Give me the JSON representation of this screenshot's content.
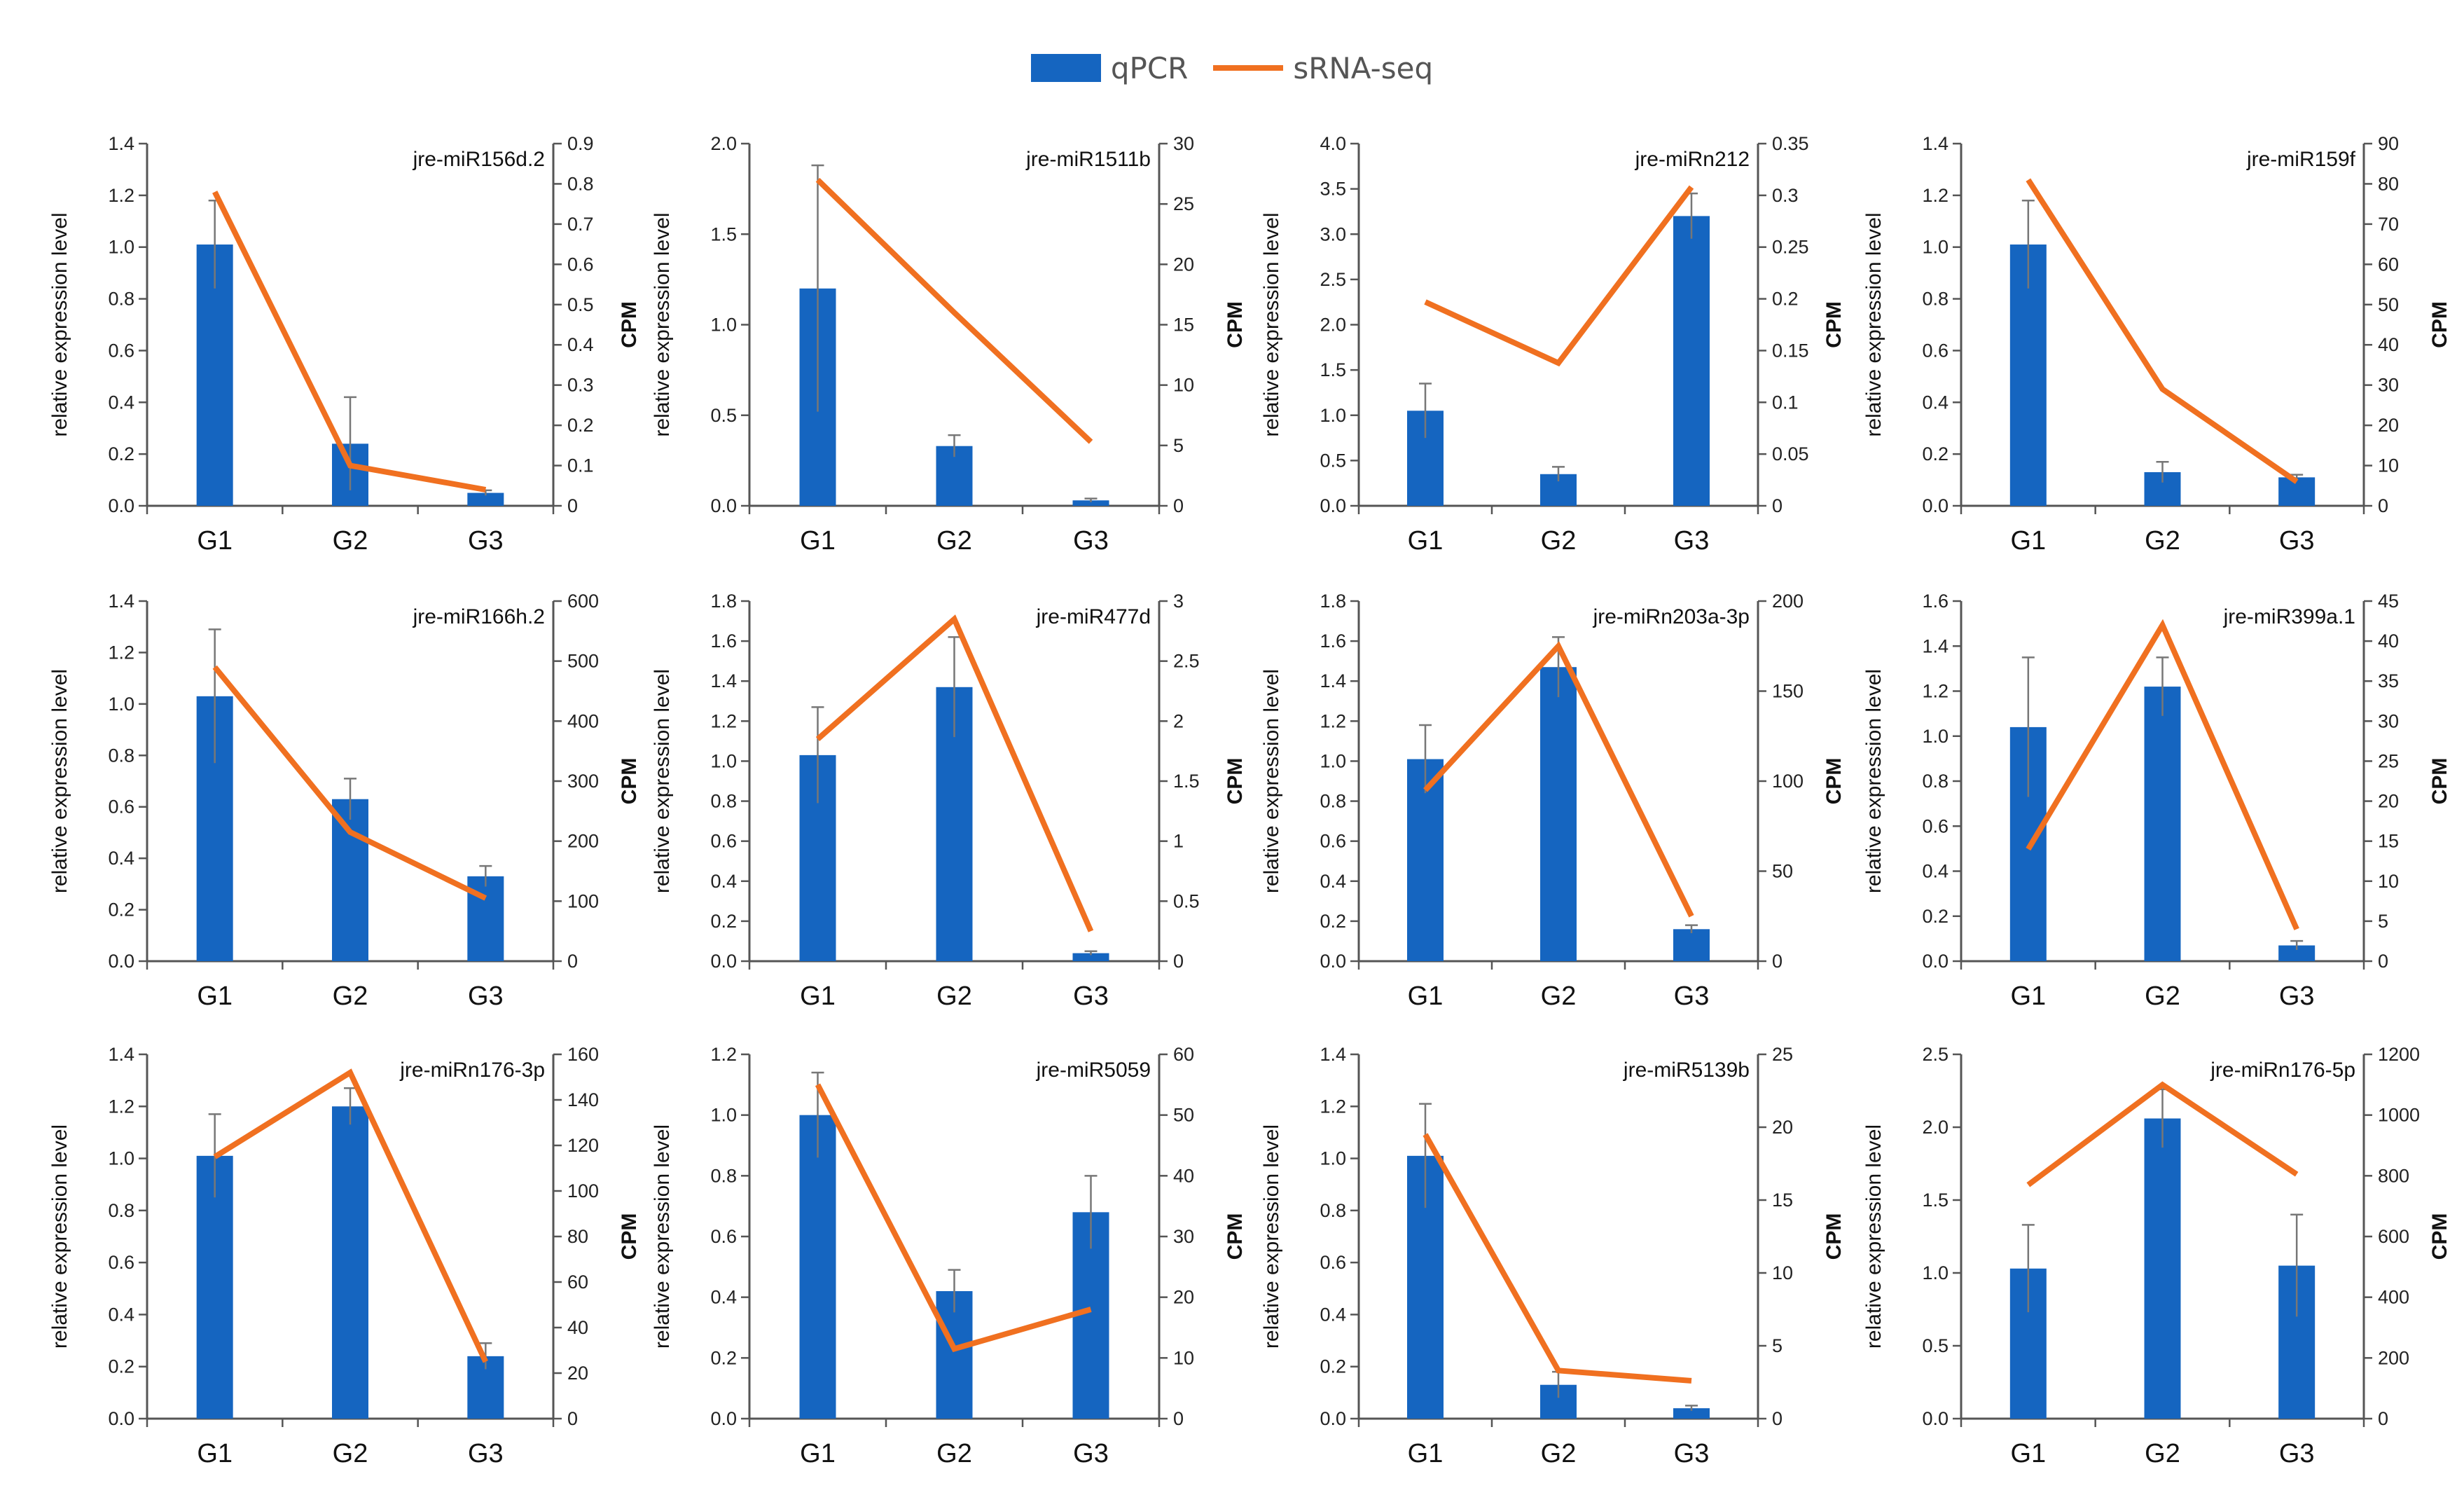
{
  "legend": {
    "bar_label": "qPCR",
    "line_label": "sRNA-seq",
    "bar_color": "#1565C0",
    "line_color": "#F07020"
  },
  "chart_data": [
    {
      "type": "bar",
      "title": "jre-miR156d.2",
      "categories": [
        "G1",
        "G2",
        "G3"
      ],
      "ylabel": "relative expression level",
      "y2label": "CPM",
      "ylim": [
        0,
        1.4
      ],
      "yticks": [
        "0.0",
        "0.2",
        "0.4",
        "0.6",
        "0.8",
        "1.0",
        "1.2",
        "1.4"
      ],
      "y2lim": [
        0,
        0.9
      ],
      "y2ticks": [
        "0",
        "0.1",
        "0.2",
        "0.3",
        "0.4",
        "0.5",
        "0.6",
        "0.7",
        "0.8",
        "0.9"
      ],
      "series": [
        {
          "name": "qPCR",
          "axis": "left",
          "values": [
            1.01,
            0.24,
            0.05
          ],
          "errors": [
            0.17,
            0.18,
            0.01
          ]
        },
        {
          "name": "sRNA-seq",
          "axis": "right",
          "values": [
            0.78,
            0.1,
            0.04
          ]
        }
      ]
    },
    {
      "type": "bar",
      "title": "jre-miR1511b",
      "categories": [
        "G1",
        "G2",
        "G3"
      ],
      "ylabel": "relative expression level",
      "y2label": "CPM",
      "ylim": [
        0,
        2.0
      ],
      "yticks": [
        "0.0",
        "0.5",
        "1.0",
        "1.5",
        "2.0"
      ],
      "y2lim": [
        0,
        30
      ],
      "y2ticks": [
        "0",
        "5",
        "10",
        "15",
        "20",
        "25",
        "30"
      ],
      "series": [
        {
          "name": "qPCR",
          "axis": "left",
          "values": [
            1.2,
            0.33,
            0.03
          ],
          "errors": [
            0.68,
            0.06,
            0.01
          ]
        },
        {
          "name": "sRNA-seq",
          "axis": "right",
          "values": [
            27,
            16,
            5.3
          ]
        }
      ]
    },
    {
      "type": "bar",
      "title": "jre-miRn212",
      "categories": [
        "G1",
        "G2",
        "G3"
      ],
      "ylabel": "relative expression level",
      "y2label": "CPM",
      "ylim": [
        0,
        4.0
      ],
      "yticks": [
        "0.0",
        "0.5",
        "1.0",
        "1.5",
        "2.0",
        "2.5",
        "3.0",
        "3.5",
        "4.0"
      ],
      "y2lim": [
        0,
        0.35
      ],
      "y2ticks": [
        "0",
        "0.05",
        "0.1",
        "0.15",
        "0.2",
        "0.25",
        "0.3",
        "0.35"
      ],
      "series": [
        {
          "name": "qPCR",
          "axis": "left",
          "values": [
            1.05,
            0.35,
            3.2
          ],
          "errors": [
            0.3,
            0.08,
            0.25
          ]
        },
        {
          "name": "sRNA-seq",
          "axis": "right",
          "values": [
            0.197,
            0.138,
            0.308
          ]
        }
      ]
    },
    {
      "type": "bar",
      "title": "jre-miR159f",
      "categories": [
        "G1",
        "G2",
        "G3"
      ],
      "ylabel": "relative expression level",
      "y2label": "CPM",
      "ylim": [
        0,
        1.4
      ],
      "yticks": [
        "0.0",
        "0.2",
        "0.4",
        "0.6",
        "0.8",
        "1.0",
        "1.2",
        "1.4"
      ],
      "y2lim": [
        0,
        90
      ],
      "y2ticks": [
        "0",
        "10",
        "20",
        "30",
        "40",
        "50",
        "60",
        "70",
        "80",
        "90"
      ],
      "series": [
        {
          "name": "qPCR",
          "axis": "left",
          "values": [
            1.01,
            0.13,
            0.11
          ],
          "errors": [
            0.17,
            0.04,
            0.01
          ]
        },
        {
          "name": "sRNA-seq",
          "axis": "right",
          "values": [
            81,
            29,
            6
          ]
        }
      ]
    },
    {
      "type": "bar",
      "title": "jre-miR166h.2",
      "categories": [
        "G1",
        "G2",
        "G3"
      ],
      "ylabel": "relative expression level",
      "y2label": "CPM",
      "ylim": [
        0,
        1.4
      ],
      "yticks": [
        "0.0",
        "0.2",
        "0.4",
        "0.6",
        "0.8",
        "1.0",
        "1.2",
        "1.4"
      ],
      "y2lim": [
        0,
        600
      ],
      "y2ticks": [
        "0",
        "100",
        "200",
        "300",
        "400",
        "500",
        "600"
      ],
      "series": [
        {
          "name": "qPCR",
          "axis": "left",
          "values": [
            1.03,
            0.63,
            0.33
          ],
          "errors": [
            0.26,
            0.08,
            0.04
          ]
        },
        {
          "name": "sRNA-seq",
          "axis": "right",
          "values": [
            490,
            215,
            105
          ]
        }
      ]
    },
    {
      "type": "bar",
      "title": "jre-miR477d",
      "categories": [
        "G1",
        "G2",
        "G3"
      ],
      "ylabel": "relative expression level",
      "y2label": "CPM",
      "ylim": [
        0,
        1.8
      ],
      "yticks": [
        "0.0",
        "0.2",
        "0.4",
        "0.6",
        "0.8",
        "1.0",
        "1.2",
        "1.4",
        "1.6",
        "1.8"
      ],
      "y2lim": [
        0,
        3
      ],
      "y2ticks": [
        "0",
        "0.5",
        "1",
        "1.5",
        "2",
        "2.5",
        "3"
      ],
      "series": [
        {
          "name": "qPCR",
          "axis": "left",
          "values": [
            1.03,
            1.37,
            0.04
          ],
          "errors": [
            0.24,
            0.25,
            0.01
          ]
        },
        {
          "name": "sRNA-seq",
          "axis": "right",
          "values": [
            1.85,
            2.85,
            0.25
          ]
        }
      ]
    },
    {
      "type": "bar",
      "title": "jre-miRn203a-3p",
      "categories": [
        "G1",
        "G2",
        "G3"
      ],
      "ylabel": "relative expression level",
      "y2label": "CPM",
      "ylim": [
        0,
        1.8
      ],
      "yticks": [
        "0.0",
        "0.2",
        "0.4",
        "0.6",
        "0.8",
        "1.0",
        "1.2",
        "1.4",
        "1.6",
        "1.8"
      ],
      "y2lim": [
        0,
        200
      ],
      "y2ticks": [
        "0",
        "50",
        "100",
        "150",
        "200"
      ],
      "series": [
        {
          "name": "qPCR",
          "axis": "left",
          "values": [
            1.01,
            1.47,
            0.16
          ],
          "errors": [
            0.17,
            0.15,
            0.02
          ]
        },
        {
          "name": "sRNA-seq",
          "axis": "right",
          "values": [
            95,
            175,
            25
          ]
        }
      ]
    },
    {
      "type": "bar",
      "title": "jre-miR399a.1",
      "categories": [
        "G1",
        "G2",
        "G3"
      ],
      "ylabel": "relative expression level",
      "y2label": "CPM",
      "ylim": [
        0,
        1.6
      ],
      "yticks": [
        "0.0",
        "0.2",
        "0.4",
        "0.6",
        "0.8",
        "1.0",
        "1.2",
        "1.4",
        "1.6"
      ],
      "y2lim": [
        0,
        45
      ],
      "y2ticks": [
        "0",
        "5",
        "10",
        "15",
        "20",
        "25",
        "30",
        "35",
        "40",
        "45"
      ],
      "series": [
        {
          "name": "qPCR",
          "axis": "left",
          "values": [
            1.04,
            1.22,
            0.07
          ],
          "errors": [
            0.31,
            0.13,
            0.02
          ]
        },
        {
          "name": "sRNA-seq",
          "axis": "right",
          "values": [
            14,
            42,
            4
          ]
        }
      ]
    },
    {
      "type": "bar",
      "title": "jre-miRn176-3p",
      "categories": [
        "G1",
        "G2",
        "G3"
      ],
      "ylabel": "relative expression level",
      "y2label": "CPM",
      "ylim": [
        0,
        1.4
      ],
      "yticks": [
        "0.0",
        "0.2",
        "0.4",
        "0.6",
        "0.8",
        "1.0",
        "1.2",
        "1.4"
      ],
      "y2lim": [
        0,
        160
      ],
      "y2ticks": [
        "0",
        "20",
        "40",
        "60",
        "80",
        "100",
        "120",
        "140",
        "160"
      ],
      "series": [
        {
          "name": "qPCR",
          "axis": "left",
          "values": [
            1.01,
            1.2,
            0.24
          ],
          "errors": [
            0.16,
            0.07,
            0.05
          ]
        },
        {
          "name": "sRNA-seq",
          "axis": "right",
          "values": [
            115,
            152,
            25
          ]
        }
      ]
    },
    {
      "type": "bar",
      "title": "jre-miR5059",
      "categories": [
        "G1",
        "G2",
        "G3"
      ],
      "ylabel": "relative expression level",
      "y2label": "CPM",
      "ylim": [
        0,
        1.2
      ],
      "yticks": [
        "0.0",
        "0.2",
        "0.4",
        "0.6",
        "0.8",
        "1.0",
        "1.2"
      ],
      "y2lim": [
        0,
        60
      ],
      "y2ticks": [
        "0",
        "10",
        "20",
        "30",
        "40",
        "50",
        "60"
      ],
      "series": [
        {
          "name": "qPCR",
          "axis": "left",
          "values": [
            1.0,
            0.42,
            0.68
          ],
          "errors": [
            0.14,
            0.07,
            0.12
          ]
        },
        {
          "name": "sRNA-seq",
          "axis": "right",
          "values": [
            55,
            11.5,
            18
          ]
        }
      ]
    },
    {
      "type": "bar",
      "title": "jre-miR5139b",
      "categories": [
        "G1",
        "G2",
        "G3"
      ],
      "ylabel": "relative expression level",
      "y2label": "CPM",
      "ylim": [
        0,
        1.4
      ],
      "yticks": [
        "0.0",
        "0.2",
        "0.4",
        "0.6",
        "0.8",
        "1.0",
        "1.2",
        "1.4"
      ],
      "y2lim": [
        0,
        25
      ],
      "y2ticks": [
        "0",
        "5",
        "10",
        "15",
        "20",
        "25"
      ],
      "series": [
        {
          "name": "qPCR",
          "axis": "left",
          "values": [
            1.01,
            0.13,
            0.04
          ],
          "errors": [
            0.2,
            0.05,
            0.01
          ]
        },
        {
          "name": "sRNA-seq",
          "axis": "right",
          "values": [
            19.5,
            3.3,
            2.6
          ]
        }
      ]
    },
    {
      "type": "bar",
      "title": "jre-miRn176-5p",
      "categories": [
        "G1",
        "G2",
        "G3"
      ],
      "ylabel": "relative expression level",
      "y2label": "CPM",
      "ylim": [
        0,
        2.5
      ],
      "yticks": [
        "0.0",
        "0.5",
        "1.0",
        "1.5",
        "2.0",
        "2.5"
      ],
      "y2lim": [
        0,
        1200
      ],
      "y2ticks": [
        "0",
        "200",
        "400",
        "600",
        "800",
        "1000",
        "1200"
      ],
      "series": [
        {
          "name": "qPCR",
          "axis": "left",
          "values": [
            1.03,
            2.06,
            1.05
          ],
          "errors": [
            0.3,
            0.2,
            0.35
          ]
        },
        {
          "name": "sRNA-seq",
          "axis": "right",
          "values": [
            770,
            1100,
            805
          ]
        }
      ]
    }
  ]
}
